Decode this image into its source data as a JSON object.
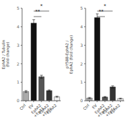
{
  "chart_data": [
    {
      "type": "bar",
      "ylabel": "EphA2 / Tubulin\n(fold change)",
      "categories": [
        "Ctrl",
        "EV",
        "EphA2\n+EpA1",
        "EphA2\n+EpFc",
        "EphA2"
      ],
      "values": [
        0.5,
        4.2,
        1.3,
        0.55,
        0.22
      ],
      "errors": [
        0.05,
        0.18,
        0.08,
        0.04,
        0.03
      ],
      "colors": [
        "#aaaaaa",
        "#111111",
        "#555555",
        "#333333",
        "#eeeeee"
      ],
      "ylim": [
        0,
        5.0
      ],
      "yticks": [
        0,
        1,
        2,
        3,
        4,
        5
      ],
      "annotations": [
        {
          "text": "**",
          "from": "EV",
          "to": "EphA2\n+EpA1",
          "y": 4.55
        },
        {
          "text": "*",
          "from": "EV",
          "to": "EphA2\n+EpFc",
          "y": 4.85
        }
      ]
    },
    {
      "type": "bar",
      "ylabel": "pY588-EphA2 /\nEphA2 (fold change)",
      "categories": [
        "Ctrl",
        "EV",
        "EphA2\n+EpA1",
        "EphA2\n+EpFc",
        "EphA2"
      ],
      "values": [
        0.15,
        4.5,
        0.2,
        0.75,
        0.12
      ],
      "errors": [
        0.03,
        0.2,
        0.03,
        0.06,
        0.02
      ],
      "colors": [
        "#aaaaaa",
        "#111111",
        "#555555",
        "#333333",
        "#eeeeee"
      ],
      "ylim": [
        0,
        5.0
      ],
      "yticks": [
        0,
        1,
        2,
        3,
        4,
        5
      ],
      "annotations": [
        {
          "text": "**",
          "from": "EV",
          "to": "EphA2\n+EpA1",
          "y": 4.55
        },
        {
          "text": "*",
          "from": "EV",
          "to": "EphA2\n+EpFc",
          "y": 4.85
        }
      ]
    }
  ]
}
